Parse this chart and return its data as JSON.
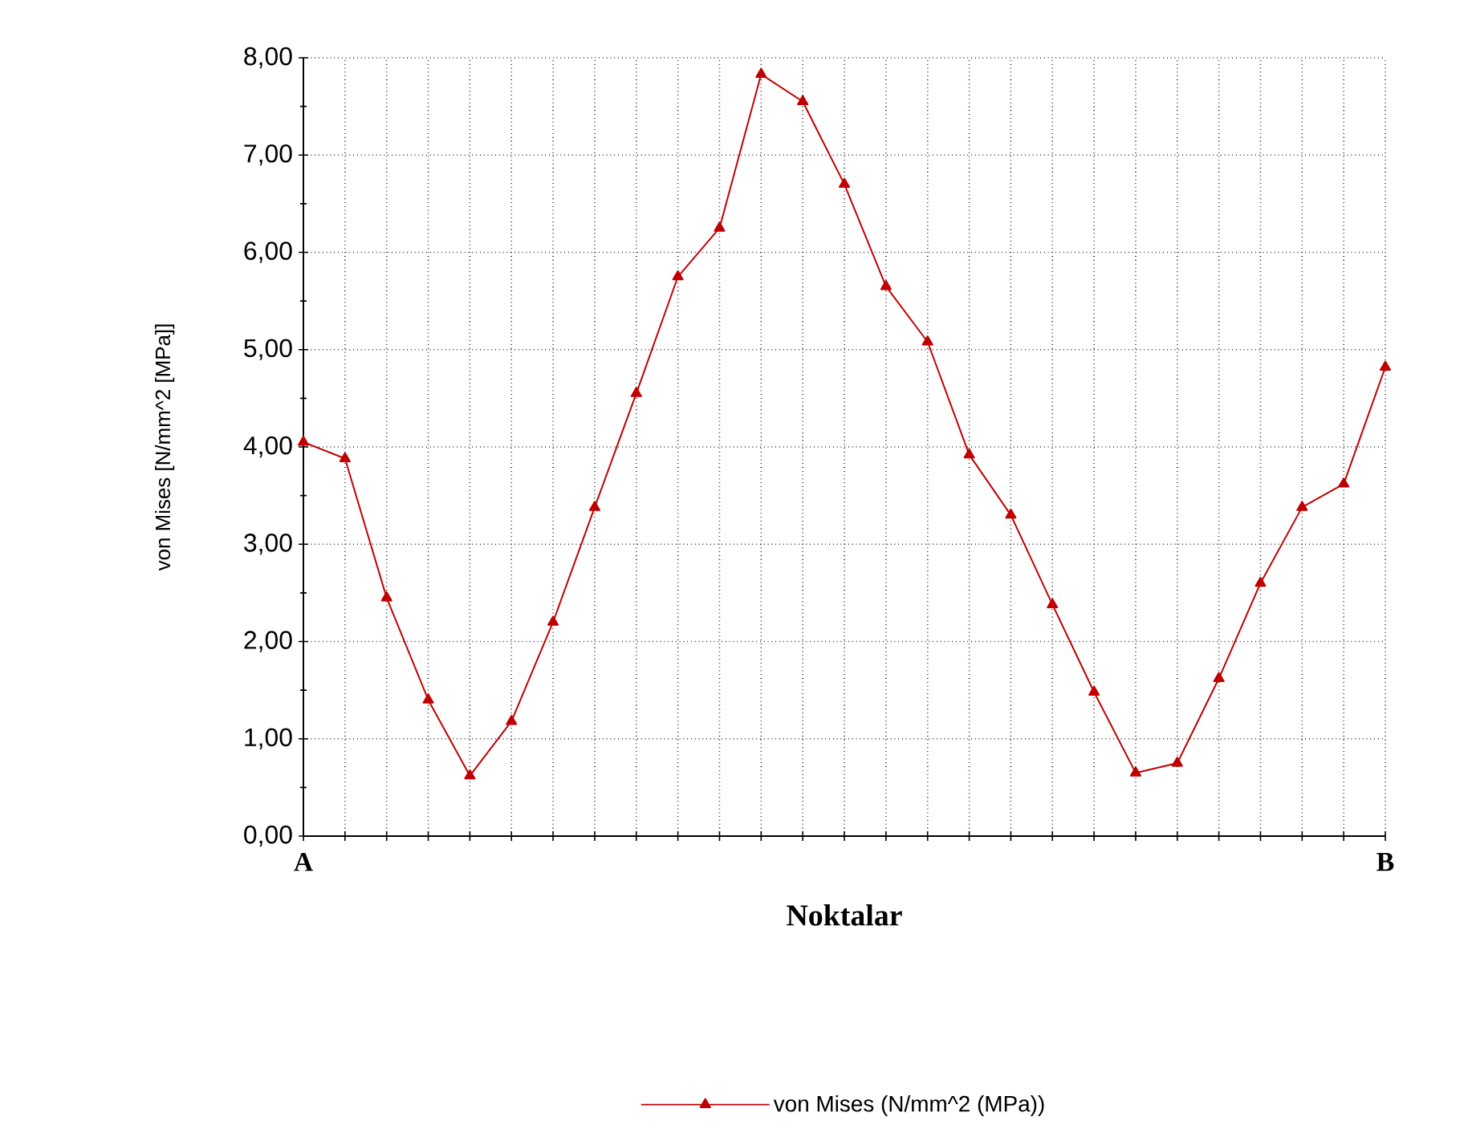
{
  "chart_data": {
    "type": "line",
    "xlabel": "Noktalar",
    "ylabel": "von Mises [N/mm^2 [MPa]]",
    "categories": [
      "A",
      null,
      null,
      null,
      null,
      null,
      null,
      null,
      null,
      null,
      null,
      null,
      null,
      null,
      null,
      null,
      null,
      null,
      null,
      null,
      null,
      null,
      null,
      null,
      null,
      null,
      "B"
    ],
    "series": [
      {
        "name": "von Mises (N/mm^2 (MPa))",
        "color": "#c00000",
        "values": [
          4.05,
          3.88,
          2.45,
          1.4,
          0.62,
          1.18,
          2.2,
          3.38,
          4.55,
          5.75,
          6.25,
          7.83,
          7.55,
          6.7,
          5.65,
          5.08,
          3.92,
          3.3,
          2.38,
          1.48,
          0.65,
          0.75,
          1.62,
          2.6,
          3.38,
          3.62,
          4.82
        ]
      }
    ],
    "ylim": [
      0,
      8
    ],
    "yticks": [
      {
        "value": 0,
        "label": "0,00"
      },
      {
        "value": 1,
        "label": "1,00"
      },
      {
        "value": 2,
        "label": "2,00"
      },
      {
        "value": 3,
        "label": "3,00"
      },
      {
        "value": 4,
        "label": "4,00"
      },
      {
        "value": 5,
        "label": "5,00"
      },
      {
        "value": 6,
        "label": "6,00"
      },
      {
        "value": 7,
        "label": "7,00"
      },
      {
        "value": 8,
        "label": "8,00"
      }
    ],
    "grid": true,
    "legend": "bottom",
    "marker": "triangle",
    "line_style": "solid"
  }
}
